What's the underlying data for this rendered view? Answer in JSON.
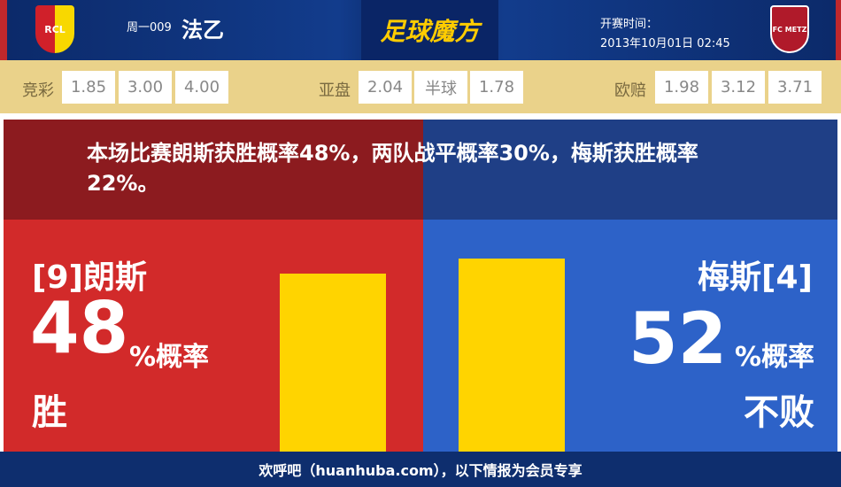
{
  "header": {
    "home_crest": "RCL",
    "round": "周一009",
    "league": "法乙",
    "logo": "足球魔方",
    "time_label": "开赛时间：",
    "time_value": "2013年10月01日 02:45",
    "away_crest": "FC METZ"
  },
  "odds": {
    "jingcai": {
      "label": "竞彩",
      "values": [
        "1.85",
        "3.00",
        "4.00"
      ]
    },
    "yapan": {
      "label": "亚盘",
      "values": [
        "2.04",
        "半球",
        "1.78"
      ]
    },
    "ouzhi": {
      "label": "欧赔",
      "values": [
        "1.98",
        "3.12",
        "3.71"
      ]
    }
  },
  "summary": "本场比赛朗斯获胜概率48%，两队战平概率30%，梅斯获胜概率22%。",
  "home": {
    "name": "[9]朗斯",
    "percent": "48",
    "unit": "%概率",
    "outcome": "胜",
    "value": 48
  },
  "away": {
    "name": "梅斯[4]",
    "percent": "52",
    "unit": "%概率",
    "outcome": "不败",
    "value": 52
  },
  "colors": {
    "home": "#d22a2a",
    "away": "#2d62c8",
    "bar": "#ffd400"
  },
  "footer": "欢呼吧（huanhuba.com），以下情报为会员专享"
}
